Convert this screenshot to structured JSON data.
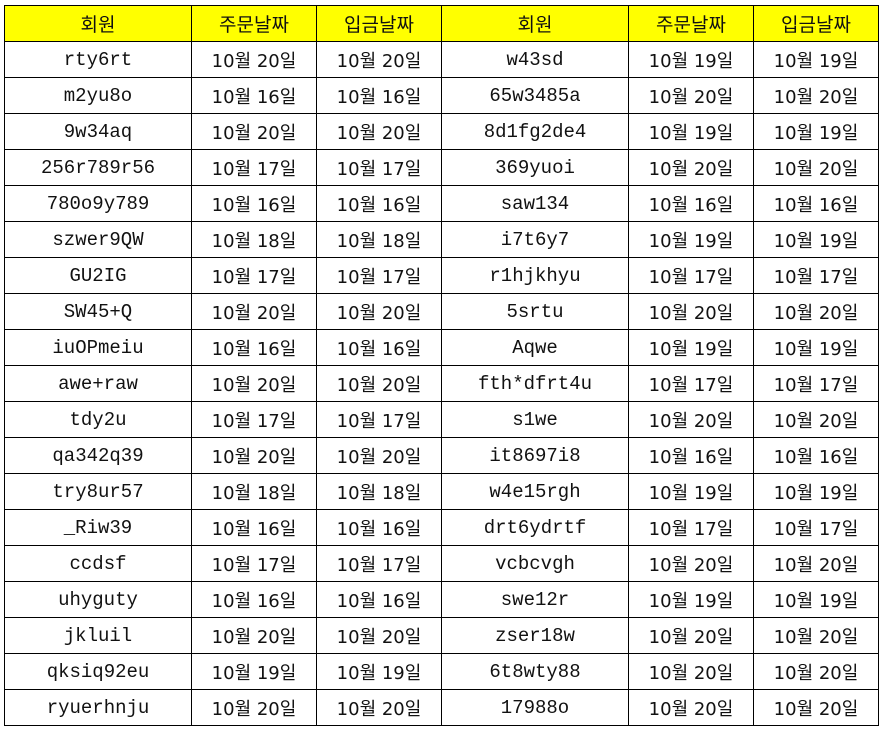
{
  "header": {
    "colors": {
      "header_bg": "#ffff00",
      "grid": "#000000"
    },
    "columns": [
      "회원",
      "주문날짜",
      "입금날짜",
      "회원",
      "주문날짜",
      "입금날짜"
    ]
  },
  "rows": [
    [
      "rty6rt",
      "10월 20일",
      "10월 20일",
      "w43sd",
      "10월 19일",
      "10월 19일"
    ],
    [
      "m2yu8o",
      "10월 16일",
      "10월 16일",
      "65w3485a",
      "10월 20일",
      "10월 20일"
    ],
    [
      "9w34aq",
      "10월 20일",
      "10월 20일",
      "8d1fg2de4",
      "10월 19일",
      "10월 19일"
    ],
    [
      "256r789r56",
      "10월 17일",
      "10월 17일",
      "369yuoi",
      "10월 20일",
      "10월 20일"
    ],
    [
      "780o9y789",
      "10월 16일",
      "10월 16일",
      "saw134",
      "10월 16일",
      "10월 16일"
    ],
    [
      "szwer9QW",
      "10월 18일",
      "10월 18일",
      "i7t6y7",
      "10월 19일",
      "10월 19일"
    ],
    [
      "GU2IG",
      "10월 17일",
      "10월 17일",
      "r1hjkhyu",
      "10월 17일",
      "10월 17일"
    ],
    [
      "SW45+Q",
      "10월 20일",
      "10월 20일",
      "5srtu",
      "10월 20일",
      "10월 20일"
    ],
    [
      "iuOPmeiu",
      "10월 16일",
      "10월 16일",
      "Aqwe",
      "10월 19일",
      "10월 19일"
    ],
    [
      "awe+raw",
      "10월 20일",
      "10월 20일",
      "fth*dfrt4u",
      "10월 17일",
      "10월 17일"
    ],
    [
      "tdy2u",
      "10월 17일",
      "10월 17일",
      "s1we",
      "10월 20일",
      "10월 20일"
    ],
    [
      "qa342q39",
      "10월 20일",
      "10월 20일",
      "it8697i8",
      "10월 16일",
      "10월 16일"
    ],
    [
      "try8ur57",
      "10월 18일",
      "10월 18일",
      "w4e15rgh",
      "10월 19일",
      "10월 19일"
    ],
    [
      "_Riw39",
      "10월 16일",
      "10월 16일",
      "drt6ydrtf",
      "10월 17일",
      "10월 17일"
    ],
    [
      "ccdsf",
      "10월 17일",
      "10월 17일",
      "vcbcvgh",
      "10월 20일",
      "10월 20일"
    ],
    [
      "uhyguty",
      "10월 16일",
      "10월 16일",
      "swe12r",
      "10월 19일",
      "10월 19일"
    ],
    [
      "jkluil",
      "10월 20일",
      "10월 20일",
      "zser18w",
      "10월 20일",
      "10월 20일"
    ],
    [
      "qksiq92eu",
      "10월 19일",
      "10월 19일",
      "6t8wty88",
      "10월 20일",
      "10월 20일"
    ],
    [
      "ryuerhnju",
      "10월 20일",
      "10월 20일",
      "17988o",
      "10월 20일",
      "10월 20일"
    ]
  ]
}
